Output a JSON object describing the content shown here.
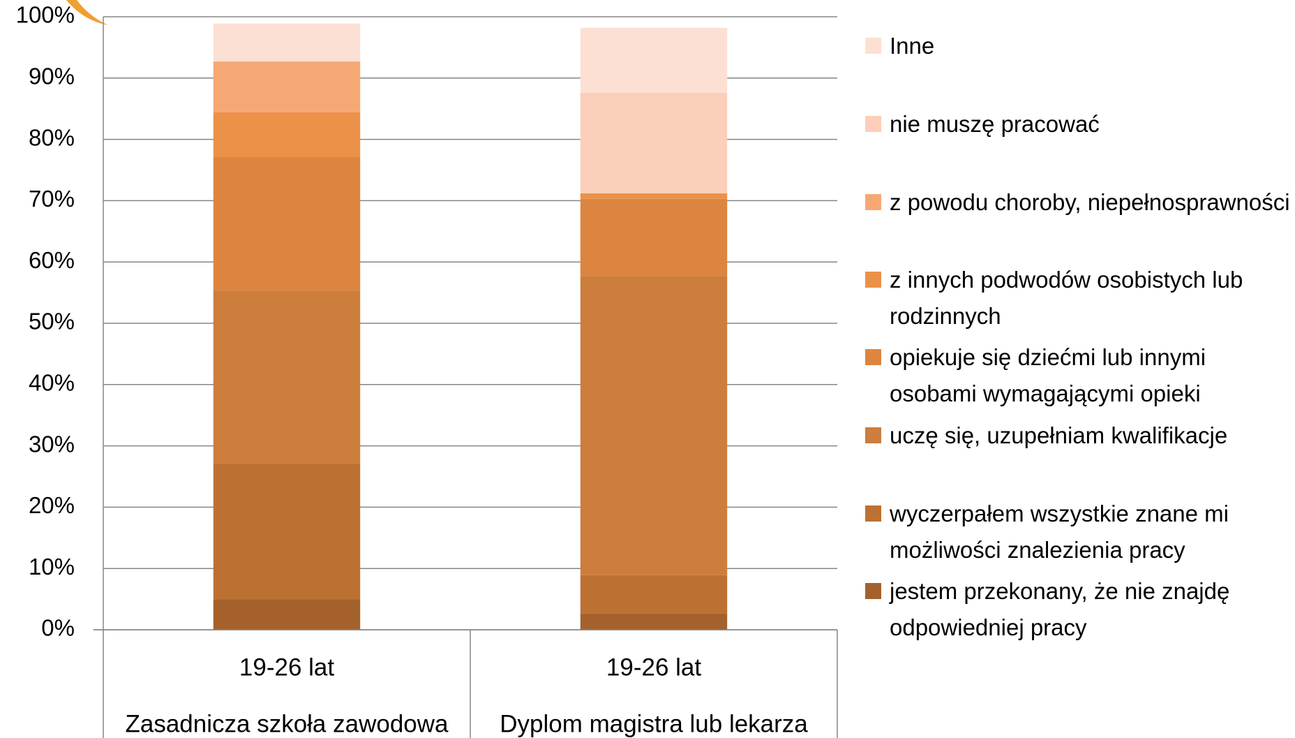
{
  "chart_data": {
    "type": "stacked_bar",
    "categories": [
      "19-26 lat",
      "19-26 lat"
    ],
    "groups": [
      "Zasadnicza szkoła zawodowa",
      "Dyplom magistra lub lekarza"
    ],
    "series": [
      {
        "name": "jestem przekonany, że nie znajdę odpowiedniej pracy",
        "color": "#a5612c",
        "values": [
          5.0,
          2.7
        ]
      },
      {
        "name": "wyczerpałem wszystkie znane mi możliwości znalezienia pracy",
        "color": "#bc7133",
        "values": [
          22.1,
          6.2
        ]
      },
      {
        "name": "uczę się, uzupełniam kwalifikacje",
        "color": "#cd7d3c",
        "values": [
          28.2,
          48.8
        ]
      },
      {
        "name": "opiekuje się dziećmi lub innymi osobami wymagającymi opieki",
        "color": "#dc8540",
        "values": [
          21.8,
          12.6
        ]
      },
      {
        "name": "z innych podwodów osobistych lub rodzinnych",
        "color": "#ec9148",
        "values": [
          7.3,
          0.9
        ]
      },
      {
        "name": "z powodu choroby, niepełnosprawności",
        "color": "#f6a874",
        "values": [
          8.3,
          0
        ]
      },
      {
        "name": "nie muszę pracować",
        "color": "#fbcfb9",
        "values": [
          0,
          16.4
        ]
      },
      {
        "name": "Inne",
        "color": "#fce0d3",
        "values": [
          6.2,
          10.6
        ]
      }
    ],
    "ylim": [
      0,
      100
    ],
    "yticks": [
      {
        "value": 0,
        "label": "0%"
      },
      {
        "value": 10,
        "label": "10%"
      },
      {
        "value": 20,
        "label": "20%"
      },
      {
        "value": 30,
        "label": "30%"
      },
      {
        "value": 40,
        "label": "40%"
      },
      {
        "value": 50,
        "label": "50%"
      },
      {
        "value": 60,
        "label": "60%"
      },
      {
        "value": 70,
        "label": "70%"
      },
      {
        "value": 80,
        "label": "80%"
      },
      {
        "value": 90,
        "label": "90%"
      },
      {
        "value": 100,
        "label": "100%"
      }
    ],
    "grid": true,
    "legend": "right"
  }
}
